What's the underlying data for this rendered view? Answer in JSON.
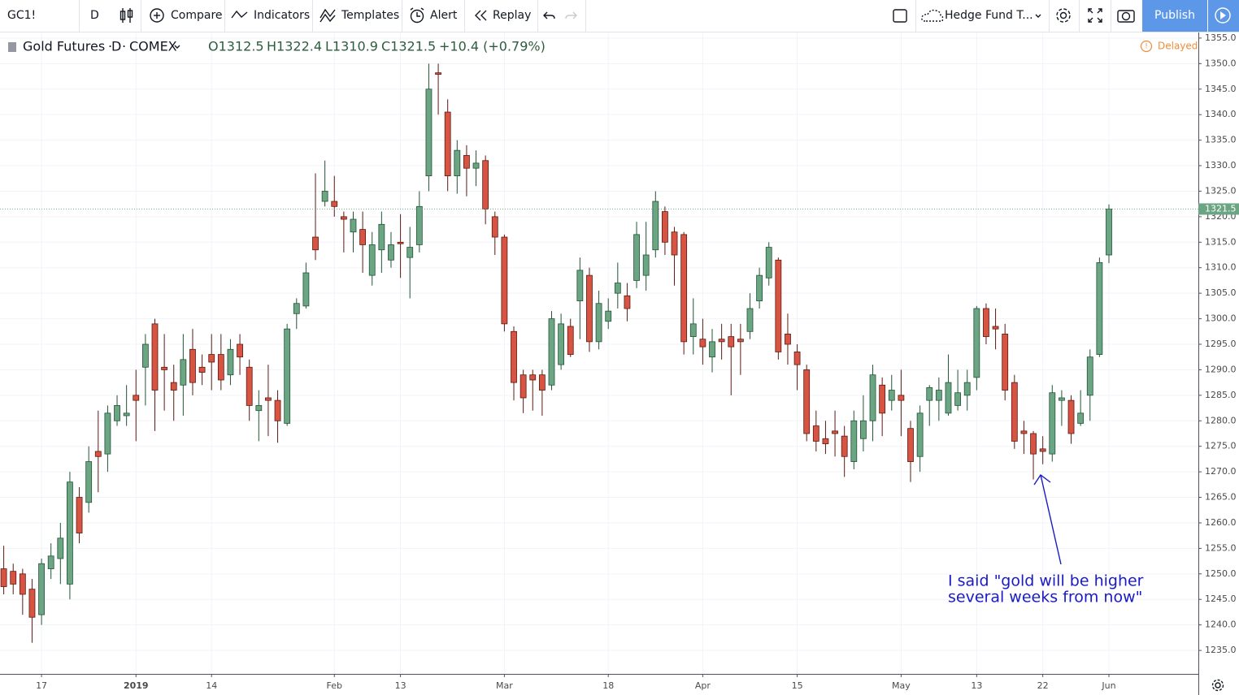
{
  "toolbar": {
    "symbol": "GC1!",
    "interval": "D",
    "compare": "Compare",
    "indicators": "Indicators",
    "templates": "Templates",
    "alert": "Alert",
    "replay": "Replay",
    "layout": "Hedge Fund T...",
    "publish": "Publish"
  },
  "legend": {
    "symbol": "Gold Futures",
    "interval": "D",
    "exchange": "COMEX",
    "open": "O1312.5",
    "high": "H1322.4",
    "low": "L1310.9",
    "close": "C1321.5",
    "change": "+10.4 (+0.79%)",
    "status": "Delayed"
  },
  "chart_data": {
    "type": "candlestick",
    "categories": [
      null,
      null,
      null,
      null,
      "17",
      null,
      null,
      null,
      null,
      null,
      null,
      null,
      null,
      null,
      "2019",
      null,
      null,
      null,
      null,
      null,
      null,
      null,
      "14",
      null,
      null,
      null,
      null,
      null,
      null,
      null,
      null,
      null,
      null,
      null,
      null,
      "Feb",
      null,
      null,
      null,
      null,
      null,
      null,
      "13",
      null,
      null,
      null,
      null,
      null,
      null,
      null,
      null,
      null,
      null,
      "Mar",
      null,
      null,
      null,
      null,
      null,
      null,
      null,
      null,
      null,
      null,
      "18",
      null,
      null,
      null,
      null,
      null,
      null,
      null,
      null,
      null,
      "Apr",
      null,
      null,
      null,
      null,
      null,
      null,
      null,
      null,
      null,
      "15",
      null,
      null,
      null,
      null,
      null,
      null,
      null,
      null,
      null,
      null,
      "May",
      null,
      null,
      null,
      null,
      null,
      null,
      null,
      "13",
      null,
      null,
      null,
      null,
      null,
      null,
      "22",
      null,
      null,
      null,
      null,
      null,
      null,
      "Jun"
    ],
    "open": [
      1251,
      1250.5,
      1250,
      1247,
      1242,
      1251,
      1253,
      1248,
      1265,
      1264,
      1274,
      1273.5,
      1280,
      1281,
      1285,
      1290.5,
      1299,
      1290.5,
      1287.5,
      1287,
      1294,
      1290.5,
      1293,
      1293,
      1289,
      1295,
      1290.5,
      1282,
      1284.5,
      1284,
      1279.5,
      1301,
      1302.5,
      1316,
      1323,
      1323,
      1320,
      1317,
      1317.5,
      1308.5,
      1313.5,
      1311.5,
      1315,
      1312,
      1314.5,
      1328,
      1348.2,
      1340.5,
      1328,
      1332,
      1329.5,
      1331,
      1320,
      1316,
      1297.5,
      1289,
      1289,
      1289,
      1287,
      1291,
      1298.5,
      1303.5,
      1308.5,
      1295.5,
      1299.5,
      1305,
      1304.5,
      1307.5,
      1308.5,
      1313.5,
      1321,
      1317,
      1316.5,
      1296.5,
      1296,
      1292.5,
      1296,
      1296.5,
      1296,
      1297.5,
      1303.5,
      1308,
      1311.5,
      1297,
      1293.5,
      1290,
      1279,
      1276.5,
      1278,
      1277,
      1272,
      1276.5,
      1280,
      1287,
      1284,
      1285,
      1278.5,
      1273,
      1284,
      1284,
      1281.5,
      1283,
      1285,
      1288.5,
      1302,
      1298.5,
      1297,
      1287.5,
      1278,
      1277.5,
      1274.5,
      1273.5,
      1284,
      1284,
      1279.5,
      1285,
      1293,
      1312.5
    ],
    "high": [
      1255.5,
      1252,
      1251,
      1249,
      1253,
      1256,
      1260,
      1270,
      1267,
      1275,
      1282,
      1283,
      1285,
      1287,
      1290,
      1297,
      1300,
      1297,
      1291,
      1297,
      1298,
      1293,
      1297,
      1297,
      1296,
      1297,
      1292,
      1286,
      1291,
      1286,
      1299,
      1304,
      1311,
      1328.5,
      1331,
      1328,
      1321,
      1321,
      1321,
      1317,
      1321,
      1317,
      1320.5,
      1318,
      1325,
      1350,
      1350,
      1343,
      1335,
      1334,
      1333,
      1332,
      1321,
      1316.5,
      1298.5,
      1290,
      1290,
      1290,
      1301.5,
      1301,
      1300,
      1312,
      1310,
      1305.5,
      1304,
      1311,
      1307,
      1319,
      1319,
      1325,
      1322,
      1318,
      1317,
      1304,
      1300,
      1298,
      1299,
      1299,
      1299,
      1305,
      1310,
      1315,
      1312,
      1301,
      1295,
      1291,
      1282,
      1280,
      1282,
      1279,
      1282,
      1285,
      1291,
      1288.5,
      1289,
      1290,
      1280,
      1283,
      1287,
      1288.5,
      1293,
      1290,
      1290,
      1302.5,
      1303,
      1302,
      1299,
      1289,
      1280,
      1278,
      1277,
      1287,
      1286,
      1285,
      1286,
      1294,
      1312,
      1322.4
    ],
    "low": [
      1246,
      1246,
      1242,
      1236.5,
      1240,
      1249,
      1248,
      1245,
      1256,
      1262,
      1266,
      1270,
      1279,
      1279,
      1276,
      1283,
      1278,
      1282,
      1280,
      1281,
      1285,
      1287,
      1286,
      1286,
      1287,
      1289,
      1280,
      1276,
      1277,
      1275.7,
      1279,
      1298,
      1302,
      1311.5,
      1322,
      1320,
      1313,
      1313,
      1309,
      1306.5,
      1309,
      1310,
      1308,
      1304,
      1313,
      1325,
      1340,
      1325,
      1324.5,
      1324,
      1326,
      1318.5,
      1312.5,
      1297.5,
      1284,
      1281.5,
      1282,
      1281,
      1286,
      1290,
      1292.5,
      1296,
      1293.5,
      1294,
      1298,
      1302,
      1299.5,
      1306,
      1305.5,
      1312,
      1312.5,
      1306.5,
      1293,
      1293,
      1291,
      1289.5,
      1292,
      1285,
      1289,
      1296,
      1302,
      1306.5,
      1292,
      1291,
      1286,
      1276,
      1274,
      1273.5,
      1273,
      1269,
      1270.5,
      1274,
      1276,
      1277,
      1282,
      1277,
      1268,
      1270,
      1279,
      1280,
      1281,
      1282,
      1282,
      1286,
      1295,
      1294,
      1284,
      1274.5,
      1273.5,
      1268.5,
      1271.5,
      1272,
      1279,
      1275.5,
      1279,
      1280,
      1292.5,
      1310.9
    ],
    "close": [
      1247.5,
      1248,
      1246,
      1241.5,
      1252,
      1253.5,
      1257,
      1268,
      1258,
      1272,
      1273,
      1281.5,
      1283,
      1281.5,
      1284,
      1295,
      1286,
      1290,
      1286,
      1292,
      1287.5,
      1289.5,
      1291.5,
      1288,
      1294,
      1292.5,
      1283,
      1283,
      1284,
      1280,
      1298,
      1303,
      1309,
      1313.5,
      1325,
      1322,
      1319.5,
      1319.5,
      1314.5,
      1314.5,
      1318.5,
      1314.5,
      1314.7,
      1314,
      1322,
      1345,
      1347.9,
      1328,
      1333,
      1329.5,
      1330.5,
      1321.5,
      1316,
      1299,
      1287.5,
      1284.5,
      1288,
      1286,
      1300,
      1299,
      1293,
      1309.5,
      1295.5,
      1303,
      1301.5,
      1307,
      1302,
      1316.5,
      1312.5,
      1323,
      1315,
      1312.5,
      1295.5,
      1299,
      1294.5,
      1295.5,
      1295.5,
      1294.5,
      1295.5,
      1302,
      1308.5,
      1314,
      1293.5,
      1295,
      1291,
      1277.5,
      1276,
      1275.5,
      1277.5,
      1273,
      1280,
      1280,
      1289,
      1281.5,
      1286,
      1284,
      1272,
      1281.5,
      1286.5,
      1286,
      1287.5,
      1285.5,
      1287.5,
      1302,
      1296.5,
      1298,
      1286,
      1276,
      1277.5,
      1273.5,
      1274,
      1285.5,
      1284.5,
      1277.5,
      1281.5,
      1292.5,
      1311,
      1321.5
    ],
    "up_color": "#6ba583",
    "down_color": "#d75442",
    "last_price": 1321.5,
    "ylim": [
      1230.4,
      1356.1
    ],
    "yticks": [
      {
        "value": 1235,
        "label": "1235.0"
      },
      {
        "value": 1240,
        "label": "1240.0"
      },
      {
        "value": 1245,
        "label": "1245.0"
      },
      {
        "value": 1250,
        "label": "1250.0"
      },
      {
        "value": 1255,
        "label": "1255.0"
      },
      {
        "value": 1260,
        "label": "1260.0"
      },
      {
        "value": 1265,
        "label": "1265.0"
      },
      {
        "value": 1270,
        "label": "1270.0"
      },
      {
        "value": 1275,
        "label": "1275.0"
      },
      {
        "value": 1280,
        "label": "1280.0"
      },
      {
        "value": 1285,
        "label": "1285.0"
      },
      {
        "value": 1290,
        "label": "1290.0"
      },
      {
        "value": 1295,
        "label": "1295.0"
      },
      {
        "value": 1300,
        "label": "1300.0"
      },
      {
        "value": 1305,
        "label": "1305.0"
      },
      {
        "value": 1310,
        "label": "1310.0"
      },
      {
        "value": 1315,
        "label": "1315.0"
      },
      {
        "value": 1320,
        "label": "1320.0"
      },
      {
        "value": 1325,
        "label": "1325.0"
      },
      {
        "value": 1330,
        "label": "1330.0"
      },
      {
        "value": 1335,
        "label": "1335.0"
      },
      {
        "value": 1340,
        "label": "1340.0"
      },
      {
        "value": 1345,
        "label": "1345.0"
      },
      {
        "value": 1350,
        "label": "1350.0"
      },
      {
        "value": 1355,
        "label": "1355.0"
      }
    ],
    "grid": true,
    "annotation": [
      "I said \"gold will be higher",
      "several weeks from now\""
    ]
  }
}
